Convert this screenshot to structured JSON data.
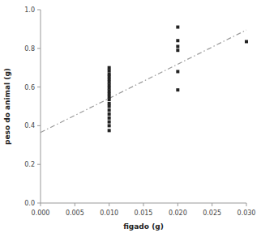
{
  "chart_data": {
    "type": "scatter",
    "x": [
      0.01,
      0.01,
      0.01,
      0.01,
      0.01,
      0.01,
      0.01,
      0.01,
      0.01,
      0.01,
      0.01,
      0.01,
      0.01,
      0.01,
      0.01,
      0.01,
      0.01,
      0.01,
      0.01,
      0.01,
      0.02,
      0.02,
      0.02,
      0.02,
      0.02,
      0.02,
      0.03
    ],
    "values": [
      0.7,
      0.685,
      0.668,
      0.655,
      0.64,
      0.625,
      0.61,
      0.595,
      0.58,
      0.565,
      0.55,
      0.535,
      0.515,
      0.5,
      0.48,
      0.46,
      0.44,
      0.42,
      0.4,
      0.375,
      0.91,
      0.84,
      0.81,
      0.79,
      0.68,
      0.585,
      0.835
    ],
    "color": "#222222",
    "marker": "square",
    "trendline": {
      "x": [
        0.0,
        0.03
      ],
      "values": [
        0.365,
        0.895
      ],
      "color": "#999999",
      "line_style": "dash-dot"
    },
    "x_label": "figado (g)",
    "y_label": "peso do animal (g)",
    "xlim": [
      0.0,
      0.03
    ],
    "ylim": [
      0.0,
      1.0
    ],
    "xticks": [
      {
        "value": 0.0,
        "label": "0.000"
      },
      0.005,
      {
        "value": 0.01,
        "label": "0.010"
      },
      0.015,
      {
        "value": 0.02,
        "label": "0.020"
      },
      0.025,
      {
        "value": 0.03,
        "label": "0.030"
      }
    ],
    "yticks": [
      {
        "value": 0.0,
        "label": "0.0"
      },
      0.2,
      0.4,
      0.6,
      0.8,
      {
        "value": 1.0,
        "label": "1.0"
      }
    ],
    "grid": false
  }
}
